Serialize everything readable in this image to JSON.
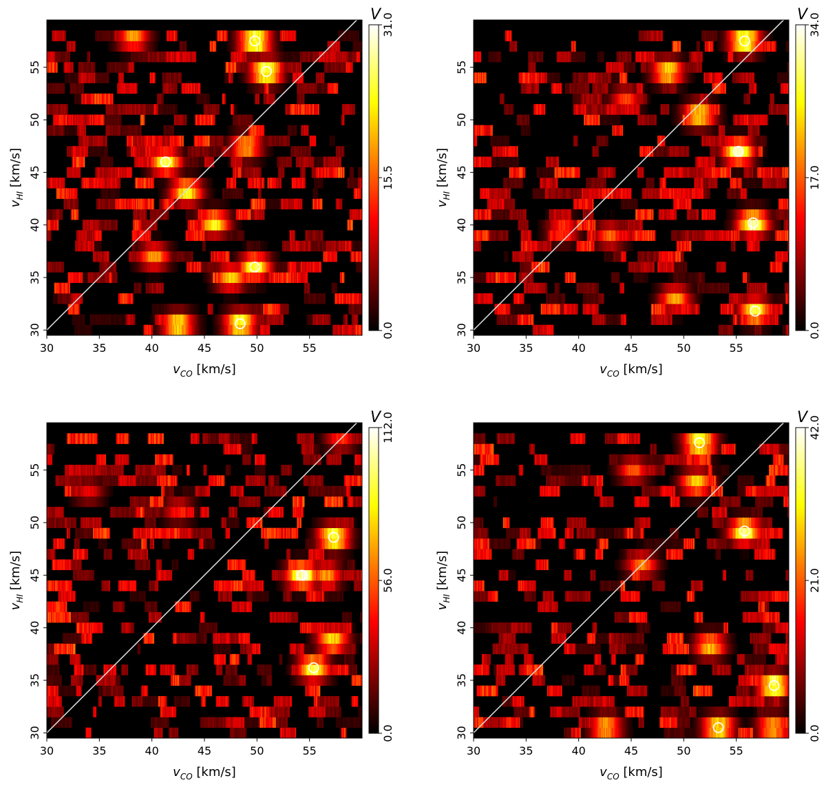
{
  "chart_data": [
    {
      "type": "heatmap",
      "xlabel": "v_CO [km/s]",
      "ylabel": "v_HI [km/s]",
      "xlim": [
        30,
        60
      ],
      "ylim": [
        29.5,
        59.5
      ],
      "xticks": [
        30,
        35,
        40,
        45,
        50,
        55
      ],
      "yticks": [
        30,
        35,
        40,
        45,
        50,
        55
      ],
      "colorbar": {
        "title": "V",
        "min": 0.0,
        "max": 31.0,
        "ticks": [
          "0.0",
          "15.5",
          "31.0"
        ]
      },
      "colormap": "hot",
      "diagonal": true,
      "hotspots": [
        {
          "x": 49.8,
          "y": 57.5,
          "v": 31
        },
        {
          "x": 50.9,
          "y": 54.6,
          "v": 31
        },
        {
          "x": 41.3,
          "y": 46.0,
          "v": 27
        },
        {
          "x": 43.3,
          "y": 43.2,
          "v": 26
        },
        {
          "x": 45.9,
          "y": 40.2,
          "v": 25
        },
        {
          "x": 49.8,
          "y": 36.0,
          "v": 28
        },
        {
          "x": 48.4,
          "y": 30.6,
          "v": 29
        },
        {
          "x": 42.5,
          "y": 30.5,
          "v": 26
        },
        {
          "x": 38.2,
          "y": 57.8,
          "v": 20
        },
        {
          "x": 49.0,
          "y": 47.5,
          "v": 22
        },
        {
          "x": 47.5,
          "y": 35.0,
          "v": 22
        },
        {
          "x": 40.2,
          "y": 37.0,
          "v": 20
        }
      ]
    },
    {
      "type": "heatmap",
      "xlabel": "v_CO [km/s]",
      "ylabel": "v_HI [km/s]",
      "xlim": [
        30,
        60
      ],
      "ylim": [
        29.5,
        59.5
      ],
      "xticks": [
        30,
        35,
        40,
        45,
        50,
        55
      ],
      "yticks": [
        30,
        35,
        40,
        45,
        50,
        55
      ],
      "colorbar": {
        "title": "V",
        "min": 0.0,
        "max": 34.0,
        "ticks": [
          "0.0",
          "17.0",
          "34.0"
        ]
      },
      "colormap": "hot",
      "diagonal": true,
      "hotspots": [
        {
          "x": 55.8,
          "y": 57.5,
          "v": 34
        },
        {
          "x": 55.2,
          "y": 47.0,
          "v": 33
        },
        {
          "x": 56.6,
          "y": 40.2,
          "v": 33
        },
        {
          "x": 56.8,
          "y": 31.8,
          "v": 30
        },
        {
          "x": 51.5,
          "y": 50.5,
          "v": 28
        },
        {
          "x": 48.5,
          "y": 54.6,
          "v": 27
        },
        {
          "x": 49.2,
          "y": 33.0,
          "v": 22
        },
        {
          "x": 38.5,
          "y": 39.5,
          "v": 18
        },
        {
          "x": 43.0,
          "y": 39.0,
          "v": 18
        },
        {
          "x": 44.5,
          "y": 52.0,
          "v": 16
        }
      ]
    },
    {
      "type": "heatmap",
      "xlabel": "v_CO [km/s]",
      "ylabel": "v_HI [km/s]",
      "xlim": [
        30,
        60
      ],
      "ylim": [
        29.5,
        59.5
      ],
      "xticks": [
        30,
        35,
        40,
        45,
        50,
        55
      ],
      "yticks": [
        30,
        35,
        40,
        45,
        50,
        55
      ],
      "colorbar": {
        "title": "V",
        "min": 0.0,
        "max": 112.0,
        "ticks": [
          "0.0",
          "56.0",
          "112.0"
        ]
      },
      "colormap": "hot",
      "diagonal": true,
      "hotspots": [
        {
          "x": 54.3,
          "y": 45.0,
          "v": 112
        },
        {
          "x": 57.3,
          "y": 48.6,
          "v": 105
        },
        {
          "x": 55.4,
          "y": 36.2,
          "v": 100
        },
        {
          "x": 57.2,
          "y": 38.8,
          "v": 85
        },
        {
          "x": 56.6,
          "y": 45.0,
          "v": 70
        },
        {
          "x": 58.0,
          "y": 58.0,
          "v": 50
        },
        {
          "x": 42.5,
          "y": 51.2,
          "v": 45
        },
        {
          "x": 34.0,
          "y": 53.0,
          "v": 40
        }
      ]
    },
    {
      "type": "heatmap",
      "xlabel": "v_CO [km/s]",
      "ylabel": "v_HI [km/s]",
      "xlim": [
        30,
        60
      ],
      "ylim": [
        29.5,
        59.5
      ],
      "xticks": [
        30,
        35,
        40,
        45,
        50,
        55
      ],
      "yticks": [
        30,
        35,
        40,
        45,
        50,
        55
      ],
      "colorbar": {
        "title": "V",
        "min": 0.0,
        "max": 42.0,
        "ticks": [
          "0.0",
          "21.0",
          "42.0"
        ]
      },
      "colormap": "hot",
      "diagonal": true,
      "hotspots": [
        {
          "x": 51.5,
          "y": 57.6,
          "v": 40
        },
        {
          "x": 55.8,
          "y": 49.2,
          "v": 40
        },
        {
          "x": 58.6,
          "y": 34.5,
          "v": 42
        },
        {
          "x": 53.3,
          "y": 30.5,
          "v": 36
        },
        {
          "x": 51.2,
          "y": 53.8,
          "v": 32
        },
        {
          "x": 52.5,
          "y": 38.3,
          "v": 30
        },
        {
          "x": 42.6,
          "y": 30.5,
          "v": 30
        },
        {
          "x": 58.5,
          "y": 30.5,
          "v": 30
        },
        {
          "x": 46.0,
          "y": 46.0,
          "v": 24
        },
        {
          "x": 45.2,
          "y": 55.0,
          "v": 22
        }
      ]
    }
  ]
}
